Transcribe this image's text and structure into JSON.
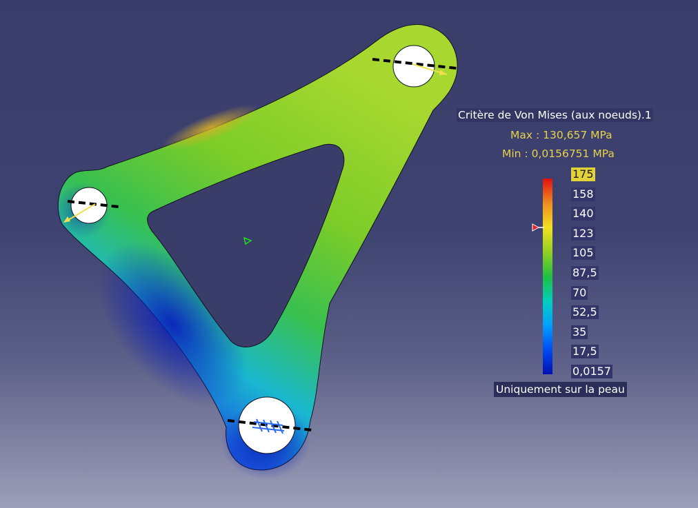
{
  "legend": {
    "title": "Critère de Von Mises (aux noeuds).1",
    "max_text": "Max : 130,657 MPa",
    "min_text": "Min : 0,0156751 MPa",
    "ticks": [
      "175",
      "158",
      "140",
      "123",
      "105",
      "87,5",
      "70",
      "52,5",
      "35",
      "17,5",
      "0,0157"
    ],
    "skin_label": "Uniquement sur la peau",
    "marker_value": 130.657
  },
  "colors": {
    "accent_text": "#e8d24a",
    "colormap": [
      "#0010b0",
      "#0060ff",
      "#00c8d8",
      "#20c040",
      "#88d020",
      "#e8e020",
      "#f0a020",
      "#e02010"
    ]
  }
}
